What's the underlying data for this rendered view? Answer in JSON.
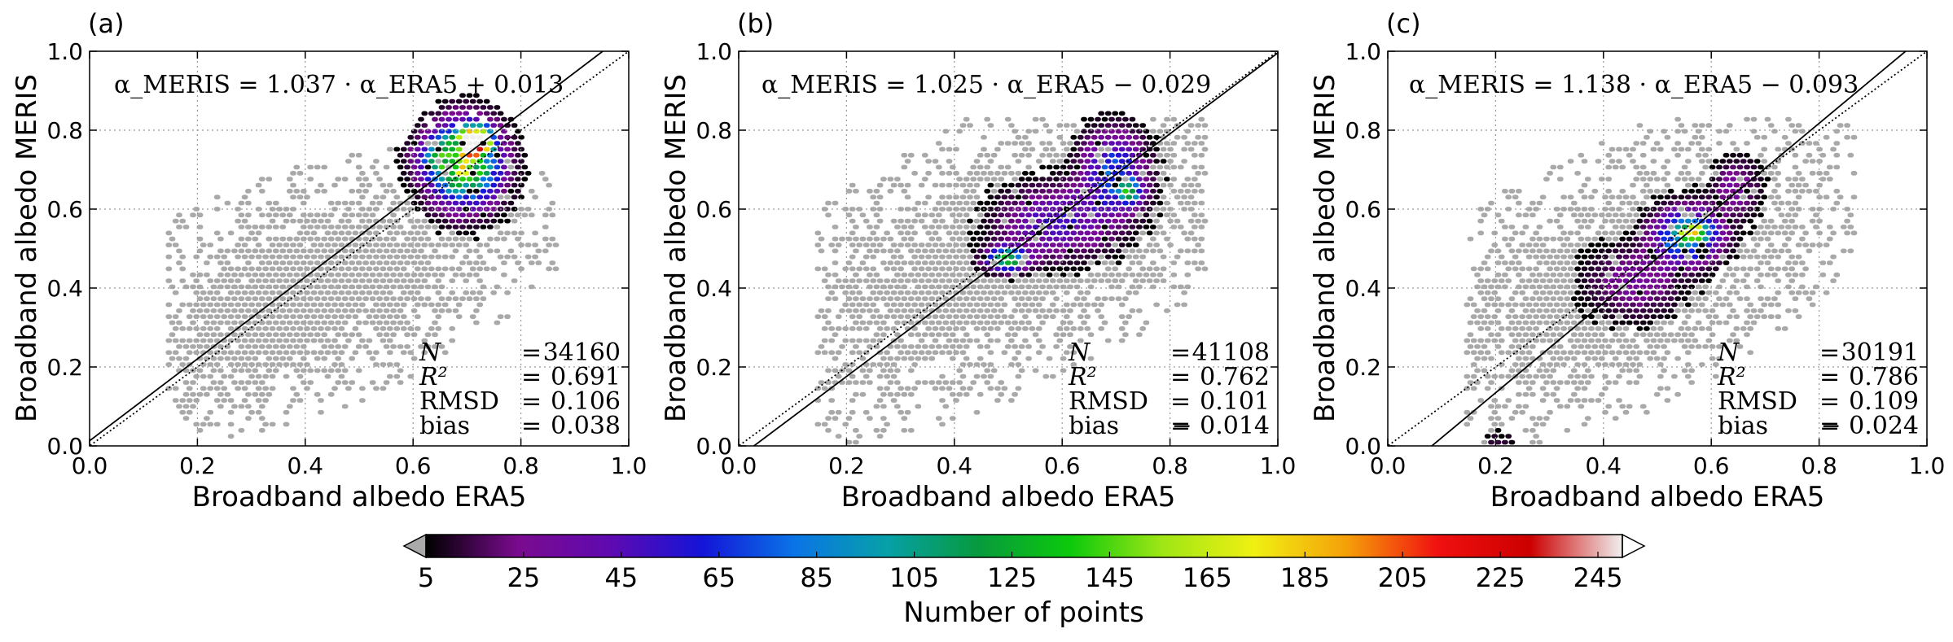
{
  "chart_data": [
    {
      "type": "heatmap",
      "panel_label": "(a)",
      "xlabel": "Broadband albedo ERA5",
      "ylabel": "Broadband albedo MERIS",
      "xlim": [
        0.0,
        1.0
      ],
      "ylim": [
        0.0,
        1.0
      ],
      "xticks": [
        "0.0",
        "0.2",
        "0.4",
        "0.6",
        "0.8",
        "1.0"
      ],
      "yticks": [
        "0.0",
        "0.2",
        "0.4",
        "0.6",
        "0.8",
        "1.0"
      ],
      "grid": true,
      "equation": "α_MERIS = 1.037 · α_ERA5 + 0.013",
      "fit": {
        "slope": 1.037,
        "intercept": 0.013
      },
      "reference_line": {
        "slope": 1.0,
        "intercept": 0.0,
        "style": "dotted"
      },
      "stats": [
        {
          "label": "N",
          "value": "34160"
        },
        {
          "label": "R²",
          "value": "0.691"
        },
        {
          "label": "RMSD",
          "value": "0.106"
        },
        {
          "label": "bias",
          "value": "0.038"
        }
      ],
      "density": {
        "background": [
          0.38,
          0.4,
          0.3,
          0.16
        ],
        "clusters": [
          {
            "x": 0.69,
            "y": 0.72,
            "sx": 0.045,
            "sy": 0.07,
            "peak": 150
          },
          {
            "x": 0.71,
            "y": 0.78,
            "sx": 0.018,
            "sy": 0.022,
            "peak": 230
          },
          {
            "x": 0.64,
            "y": 0.74,
            "sx": 0.03,
            "sy": 0.035,
            "peak": 45
          }
        ]
      }
    },
    {
      "type": "heatmap",
      "panel_label": "(b)",
      "xlabel": "Broadband albedo ERA5",
      "ylabel": "Broadband albedo MERIS",
      "xlim": [
        0.0,
        1.0
      ],
      "ylim": [
        0.0,
        1.0
      ],
      "xticks": [
        "0.0",
        "0.2",
        "0.4",
        "0.6",
        "0.8",
        "1.0"
      ],
      "yticks": [
        "0.0",
        "0.2",
        "0.4",
        "0.6",
        "0.8",
        "1.0"
      ],
      "grid": true,
      "equation": "α_MERIS = 1.025 · α_ERA5 − 0.029",
      "fit": {
        "slope": 1.025,
        "intercept": -0.029
      },
      "reference_line": {
        "slope": 1.0,
        "intercept": 0.0,
        "style": "dotted"
      },
      "stats": [
        {
          "label": "N",
          "value": "41108"
        },
        {
          "label": "R²",
          "value": "0.762"
        },
        {
          "label": "RMSD",
          "value": "0.101"
        },
        {
          "label": "bias",
          "value": "− 0.014"
        }
      ],
      "density": {
        "background": [
          0.5,
          0.5,
          0.32,
          0.22
        ],
        "clusters": [
          {
            "x": 0.49,
            "y": 0.48,
            "sx": 0.025,
            "sy": 0.02,
            "peak": 130
          },
          {
            "x": 0.58,
            "y": 0.57,
            "sx": 0.07,
            "sy": 0.06,
            "peak": 50
          },
          {
            "x": 0.69,
            "y": 0.7,
            "sx": 0.04,
            "sy": 0.07,
            "peak": 70
          },
          {
            "x": 0.72,
            "y": 0.65,
            "sx": 0.015,
            "sy": 0.02,
            "peak": 80
          }
        ]
      }
    },
    {
      "type": "heatmap",
      "panel_label": "(c)",
      "xlabel": "Broadband albedo ERA5",
      "ylabel": "Broadband albedo MERIS",
      "xlim": [
        0.0,
        1.0
      ],
      "ylim": [
        0.0,
        1.0
      ],
      "xticks": [
        "0.0",
        "0.2",
        "0.4",
        "0.6",
        "0.8",
        "1.0"
      ],
      "yticks": [
        "0.0",
        "0.2",
        "0.4",
        "0.6",
        "0.8",
        "1.0"
      ],
      "grid": true,
      "equation": "α_MERIS = 1.138 · α_ERA5 − 0.093",
      "fit": {
        "slope": 1.138,
        "intercept": -0.093
      },
      "reference_line": {
        "slope": 1.0,
        "intercept": 0.0,
        "style": "dotted"
      },
      "stats": [
        {
          "label": "N",
          "value": "30191"
        },
        {
          "label": "R²",
          "value": "0.786"
        },
        {
          "label": "RMSD",
          "value": "0.109"
        },
        {
          "label": "bias",
          "value": "− 0.024"
        }
      ],
      "density": {
        "background": [
          0.42,
          0.44,
          0.25,
          0.2
        ],
        "clusters": [
          {
            "x": 0.55,
            "y": 0.54,
            "sx": 0.04,
            "sy": 0.045,
            "peak": 110
          },
          {
            "x": 0.56,
            "y": 0.55,
            "sx": 0.015,
            "sy": 0.015,
            "peak": 90
          },
          {
            "x": 0.45,
            "y": 0.42,
            "sx": 0.06,
            "sy": 0.06,
            "peak": 30
          },
          {
            "x": 0.2,
            "y": 0.02,
            "sx": 0.02,
            "sy": 0.015,
            "peak": 15
          },
          {
            "x": 0.64,
            "y": 0.66,
            "sx": 0.03,
            "sy": 0.05,
            "peak": 30
          }
        ]
      }
    }
  ],
  "colorbar": {
    "label": "Number of points",
    "ticks": [
      "5",
      "25",
      "45",
      "65",
      "85",
      "105",
      "125",
      "145",
      "165",
      "185",
      "205",
      "225",
      "245"
    ],
    "range": [
      5,
      250
    ],
    "stops": [
      "#000000",
      "#7a0b8f",
      "#5f0ab0",
      "#1414d8",
      "#0a74e6",
      "#07a0a8",
      "#079a3e",
      "#0cc90c",
      "#9fe615",
      "#f0f012",
      "#f5a009",
      "#f01010",
      "#cc0000",
      "#f0f0f0"
    ],
    "under_color": "#aaaaaa",
    "over_color": "#ffffff"
  }
}
